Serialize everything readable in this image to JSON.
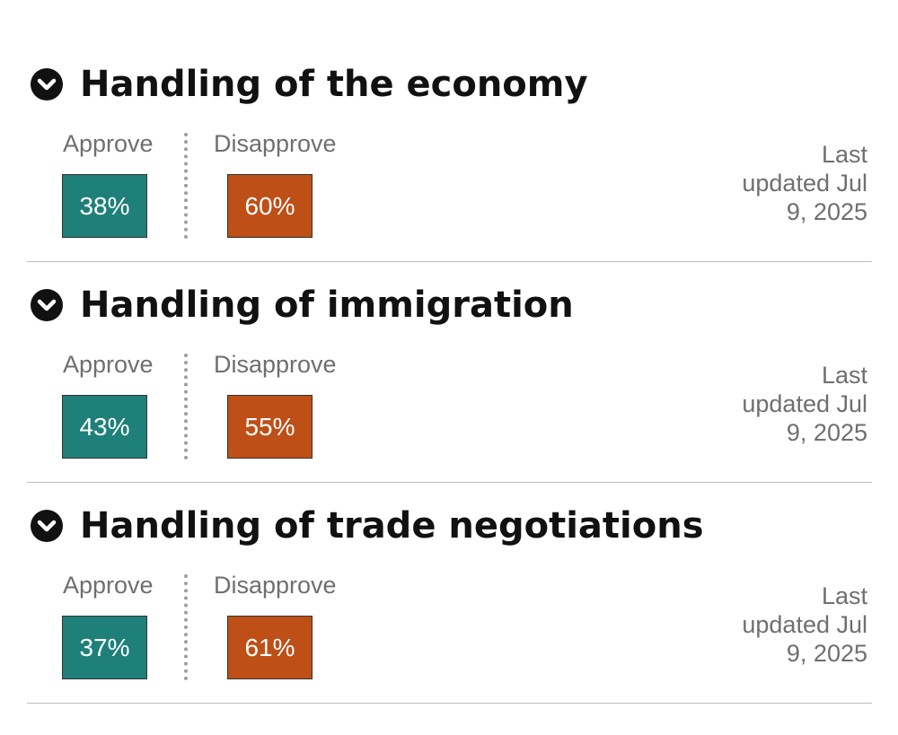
{
  "colors": {
    "approve": "#1e8079",
    "disapprove": "#bd4f17",
    "toggle_background": "#111111",
    "title_text": "#111111",
    "muted_text": "#6f6f6f"
  },
  "icons": {
    "toggle": "chevron-down-icon"
  },
  "labels": {
    "approve": "Approve",
    "disapprove": "Disapprove"
  },
  "sections": [
    {
      "title": "Handling of the economy",
      "approve": "38%",
      "disapprove": "60%",
      "updated": "Last updated Jul 9, 2025"
    },
    {
      "title": "Handling of immigration",
      "approve": "43%",
      "disapprove": "55%",
      "updated": "Last updated Jul 9, 2025"
    },
    {
      "title": "Handling of trade negotiations",
      "approve": "37%",
      "disapprove": "61%",
      "updated": "Last updated Jul 9, 2025"
    }
  ]
}
